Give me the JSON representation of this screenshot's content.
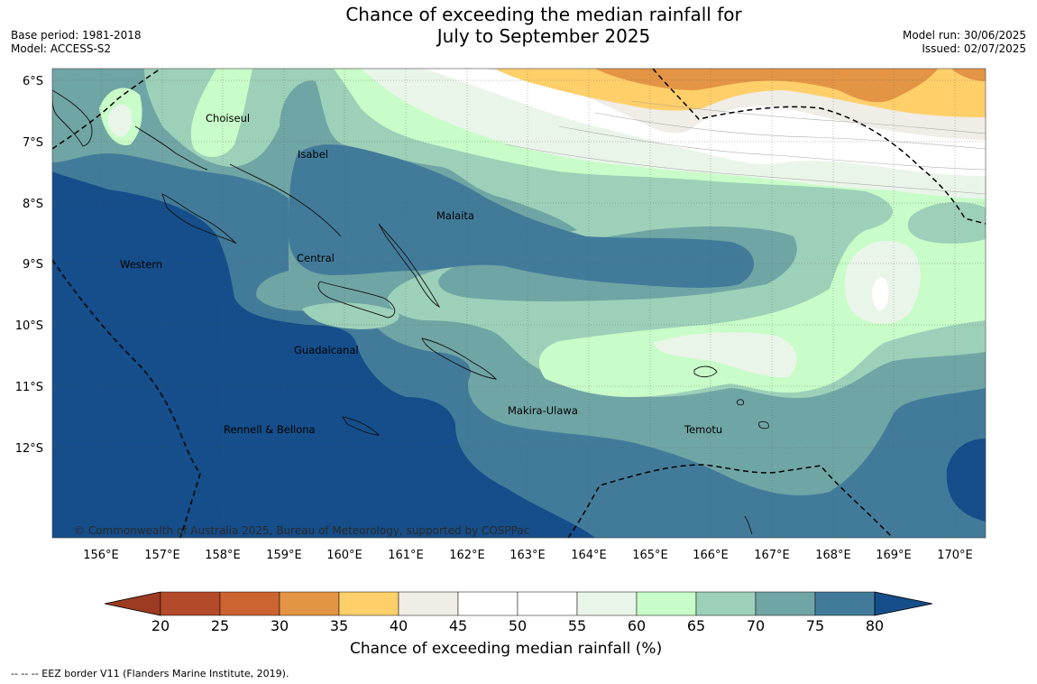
{
  "title_line1": "Chance of exceeding the median rainfall for",
  "title_line2": "July to September 2025",
  "base_period": "Base period: 1981-2018",
  "model": "Model: ACCESS-S2",
  "model_run": "Model run: 30/06/2025",
  "issued": "Issued: 02/07/2025",
  "copyright": "© Commonwealth of Australia 2025, Bureau of Meteorology, supported by COSPPac",
  "lon_labels": [
    "156°E",
    "157°E",
    "158°E",
    "159°E",
    "160°E",
    "161°E",
    "162°E",
    "163°E",
    "164°E",
    "165°E",
    "166°E",
    "167°E",
    "168°E",
    "169°E",
    "170°E"
  ],
  "lat_labels": [
    "6°S",
    "7°S",
    "8°S",
    "9°S",
    "10°S",
    "11°S",
    "12°S"
  ],
  "region_labels": [
    "Choiseul",
    "Isabel",
    "Malaita",
    "Western",
    "Central",
    "Guadalcanal",
    "Makira-Ulawa",
    "Rennell & Bellona",
    "Temotu"
  ],
  "colorbar": {
    "ticks": [
      "20",
      "25",
      "30",
      "35",
      "40",
      "45",
      "50",
      "55",
      "60",
      "65",
      "70",
      "75",
      "80"
    ],
    "colors": [
      "#b34a2a",
      "#cc6432",
      "#e39545",
      "#ffcf6a",
      "#efede6",
      "#ffffff",
      "#ffffff",
      "#eaf5ea",
      "#c8fcc8",
      "#9dd0b8",
      "#70a5a5",
      "#427b9a"
    ],
    "low_extend_color": "#9c3a22",
    "high_extend_color": "#154e8a",
    "label": "Chance of exceeding median rainfall (%)"
  },
  "legend_footer": "--  --  -- EEZ border V11 (Flanders Marine Institute, 2019)."
}
